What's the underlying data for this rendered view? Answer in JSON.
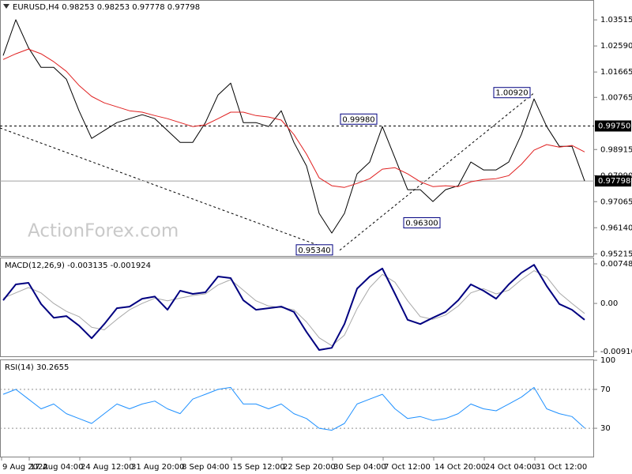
{
  "chart_data": [
    {
      "type": "line",
      "title": "EURUSD,H4  0.98253 0.98253 0.97778 0.97798",
      "watermark": "ActionForex.com",
      "xlim": [
        0,
        376
      ],
      "x": [
        2,
        10,
        18,
        26,
        34,
        42,
        50,
        58,
        66,
        74,
        82,
        90,
        98,
        106,
        114,
        122,
        130,
        138,
        146,
        154,
        162,
        170,
        178,
        186,
        194,
        202,
        210,
        218,
        226,
        234,
        242,
        250,
        258,
        266,
        274,
        282,
        290,
        298,
        306,
        314,
        322,
        330,
        338,
        346,
        354,
        362,
        370
      ],
      "series": [
        {
          "color": "#000000",
          "width": 1,
          "values": [
            1.0225,
            1.0352,
            1.0253,
            1.0183,
            1.0183,
            1.0141,
            1.0029,
            0.9931,
            0.9959,
            0.9987,
            1.0001,
            1.0015,
            1.0001,
            0.9959,
            0.9917,
            0.9917,
            0.9987,
            1.0085,
            1.0127,
            0.9987,
            0.9987,
            0.9973,
            1.0029,
            0.9917,
            0.9833,
            0.9665,
            0.9595,
            0.9665,
            0.9805,
            0.9847,
            0.9973,
            0.9861,
            0.9749,
            0.9749,
            0.9707,
            0.9749,
            0.9763,
            0.9847,
            0.9819,
            0.9819,
            0.9847,
            0.9945,
            1.0071,
            0.9973,
            0.9903,
            0.9903,
            0.97798
          ]
        },
        {
          "color": "#e02020",
          "width": 1,
          "values": [
            1.0211,
            1.0231,
            1.0248,
            1.0231,
            1.0203,
            1.0169,
            1.0119,
            1.008,
            1.0057,
            1.0043,
            1.0029,
            1.0024,
            1.0012,
            1.0001,
            0.9987,
            0.9973,
            0.9979,
            1.0001,
            1.0024,
            1.0024,
            1.0012,
            1.0007,
            0.9996,
            0.9945,
            0.9875,
            0.9791,
            0.9763,
            0.9757,
            0.9771,
            0.9788,
            0.9822,
            0.9827,
            0.9805,
            0.9777,
            0.976,
            0.9763,
            0.976,
            0.9777,
            0.9785,
            0.9788,
            0.9799,
            0.9839,
            0.9889,
            0.9909,
            0.99,
            0.9906,
            0.9883
          ]
        }
      ],
      "ylim": [
        0.9511,
        1.0422
      ],
      "yticks": [
        1.03515,
        {
          "value": 1.0259,
          "label": "1.02590"
        },
        1.01665,
        1.00765,
        0.98915,
        {
          "value": 0.9799,
          "label": "0.97990"
        },
        0.97065,
        {
          "value": 0.9614,
          "label": "0.96140"
        },
        0.95215
      ],
      "grid": false,
      "price_lines": [
        {
          "value": 0.9975,
          "label": "0.99750",
          "style": "dashed",
          "color": "#000000"
        },
        {
          "value": 0.97798,
          "label": "0.97798",
          "style": "solid",
          "color": "#a0a0a0"
        }
      ],
      "annotations": [
        {
          "x": 227,
          "value": 0.9998,
          "label": "0.99980"
        },
        {
          "x": 199,
          "value": 0.9534,
          "label": "0.95340"
        },
        {
          "x": 267,
          "value": 0.963,
          "label": "0.96300"
        },
        {
          "x": 324,
          "value": 1.0092,
          "label": "1.00920"
        }
      ],
      "trendlines": [
        [
          [
            0,
            0.9968
          ],
          [
            210,
            0.9534
          ]
        ],
        [
          [
            215,
            0.9534
          ],
          [
            338,
            1.0092
          ]
        ]
      ]
    },
    {
      "type": "line",
      "title": "MACD(12,26,9) -0.003135 -0.001924",
      "xlim": [
        0,
        376
      ],
      "x": [
        2,
        10,
        18,
        26,
        34,
        42,
        50,
        58,
        66,
        74,
        82,
        90,
        98,
        106,
        114,
        122,
        130,
        138,
        146,
        154,
        162,
        170,
        178,
        186,
        194,
        202,
        210,
        218,
        226,
        234,
        242,
        250,
        258,
        266,
        274,
        282,
        290,
        298,
        306,
        314,
        322,
        330,
        338,
        346,
        354,
        362,
        370
      ],
      "series": [
        {
          "color": "#a8a8a8",
          "width": 1,
          "values": [
            0.001,
            0.002,
            0.003,
            0.002,
            0.0,
            -0.0015,
            -0.0025,
            -0.0045,
            -0.005,
            -0.003,
            -0.0012,
            0.0,
            0.001,
            0.0005,
            0.001,
            0.0015,
            0.0018,
            0.0035,
            0.0045,
            0.0025,
            0.0005,
            -0.0005,
            -0.0008,
            -0.0012,
            -0.0035,
            -0.0065,
            -0.008,
            -0.006,
            -0.001,
            0.003,
            0.0055,
            0.004,
            0.0005,
            -0.0025,
            -0.003,
            -0.0022,
            -0.0005,
            0.002,
            0.0028,
            0.0018,
            0.0025,
            0.0045,
            0.0062,
            0.005,
            0.002,
            0.0,
            -0.0019
          ]
        },
        {
          "color": "#000080",
          "width": 2,
          "values": [
            0.0006,
            0.0036,
            0.0039,
            -0.0001,
            -0.0027,
            -0.0024,
            -0.0042,
            -0.0066,
            -0.0039,
            -0.0009,
            -0.0006,
            0.0009,
            0.0013,
            -0.0012,
            0.0024,
            0.0018,
            0.0021,
            0.0051,
            0.0048,
            0.0006,
            -0.0012,
            -0.0009,
            -0.0006,
            -0.0016,
            -0.0054,
            -0.0088,
            -0.0084,
            -0.0039,
            0.0028,
            0.0051,
            0.0066,
            0.0018,
            -0.0031,
            -0.0039,
            -0.0027,
            -0.0016,
            0.0006,
            0.0036,
            0.0024,
            0.0009,
            0.0036,
            0.0058,
            0.0073,
            0.0033,
            -0.0001,
            -0.0012,
            -0.0031
          ]
        }
      ],
      "ylim": [
        -0.01015,
        0.008533
      ],
      "yticks": [
        0.007486,
        {
          "value": 0,
          "label": "0.00"
        },
        -0.009104
      ],
      "grid": false
    },
    {
      "type": "line",
      "title": "RSI(14) 30.2655",
      "xlim": [
        0,
        376
      ],
      "x": [
        2,
        10,
        18,
        26,
        34,
        42,
        50,
        58,
        66,
        74,
        82,
        90,
        98,
        106,
        114,
        122,
        130,
        138,
        146,
        154,
        162,
        170,
        178,
        186,
        194,
        202,
        210,
        218,
        226,
        234,
        242,
        250,
        258,
        266,
        274,
        282,
        290,
        298,
        306,
        314,
        322,
        330,
        338,
        346,
        354,
        362,
        370
      ],
      "series": [
        {
          "color": "#1e90ff",
          "width": 1,
          "values": [
            65,
            70,
            60,
            50,
            55,
            45,
            40,
            35,
            45,
            55,
            50,
            55,
            58,
            50,
            45,
            60,
            65,
            70,
            72,
            55,
            55,
            50,
            55,
            45,
            40,
            30,
            28,
            35,
            55,
            60,
            65,
            50,
            40,
            42,
            38,
            40,
            45,
            55,
            50,
            48,
            55,
            62,
            72,
            50,
            45,
            42,
            30.2655
          ]
        }
      ],
      "ylim": [
        0,
        100
      ],
      "yticks": [
        100,
        70,
        30
      ],
      "grid": true,
      "xticks": [
        {
          "value": 1,
          "label": "9 Aug 2022"
        },
        {
          "value": 18.5,
          "label": "17 Aug 04:00"
        },
        {
          "value": 50.5,
          "label": "24 Aug 12:00"
        },
        {
          "value": 82.5,
          "label": "31 Aug 20:00"
        },
        {
          "value": 114.5,
          "label": "8 Sep 04:00"
        },
        {
          "value": 146.5,
          "label": "15 Sep 12:00"
        },
        {
          "value": 178.5,
          "label": "22 Sep 20:00"
        },
        {
          "value": 210.5,
          "label": "30 Sep 04:00"
        },
        {
          "value": 242.5,
          "label": "7 Oct 12:00"
        },
        {
          "value": 274.5,
          "label": "14 Oct 20:00"
        },
        {
          "value": 306.5,
          "label": "24 Oct 04:00"
        },
        {
          "value": 338.5,
          "label": "31 Oct 12:00"
        }
      ]
    }
  ]
}
